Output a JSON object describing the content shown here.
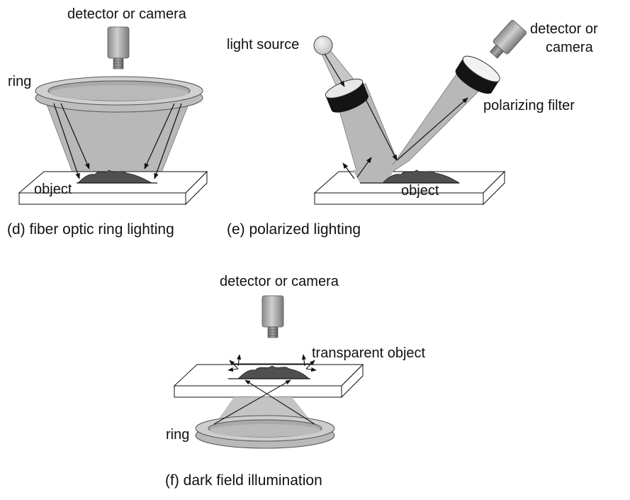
{
  "panel_d": {
    "caption": "(d) fiber optic ring lighting",
    "labels": {
      "camera": "detector or camera",
      "ring": "ring",
      "object": "object"
    }
  },
  "panel_e": {
    "caption": "(e) polarized lighting",
    "labels": {
      "light_source": "light source",
      "camera_line1": "detector or",
      "camera_line2": "camera",
      "filter": "polarizing filter",
      "object": "object"
    }
  },
  "panel_f": {
    "caption": "(f) dark field illumination",
    "labels": {
      "camera": "detector or camera",
      "object": "transparent object",
      "ring": "ring"
    }
  },
  "colors": {
    "beam": "#b4b4b4",
    "object": "#505050",
    "ring_face": "#c4c4c4",
    "stroke": "#111111",
    "camera_body": "#a6a6a6"
  }
}
